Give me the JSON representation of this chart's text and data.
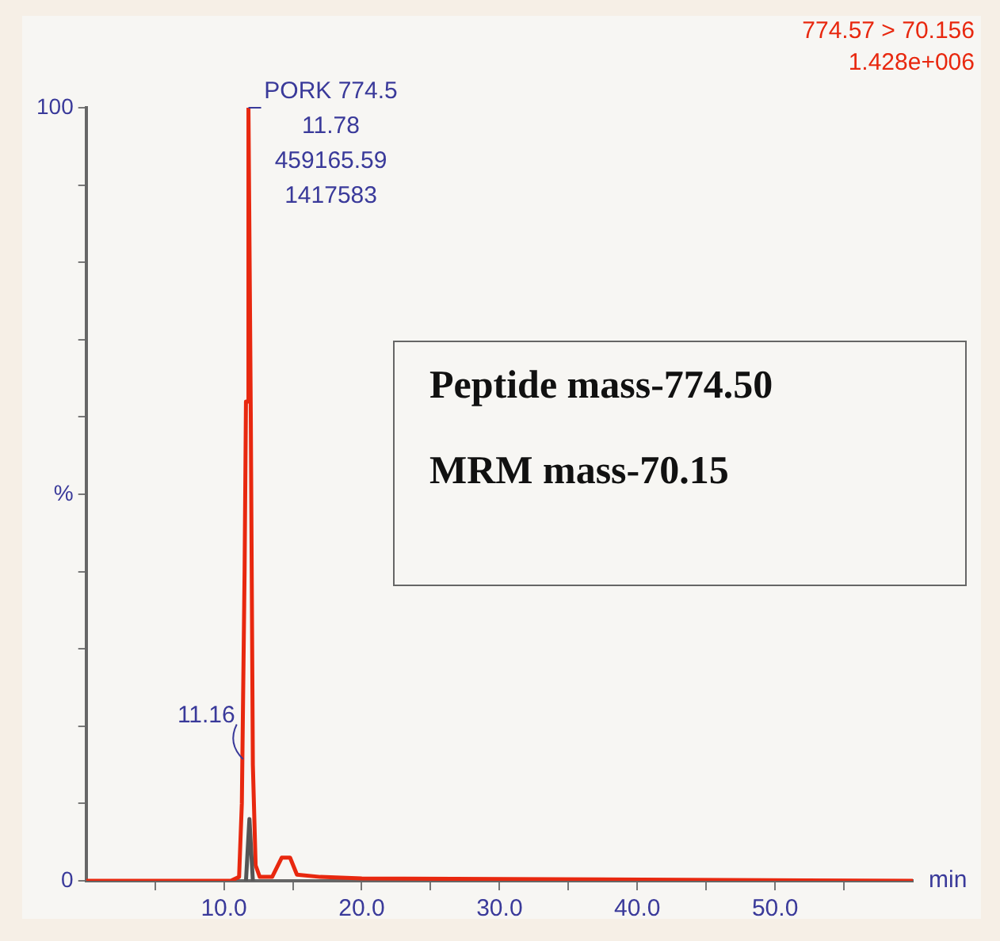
{
  "chart_data": {
    "type": "line",
    "title": "774.57 > 70.156",
    "subtitle": "1.428e+006",
    "xlabel": "min",
    "xlim": [
      0,
      60
    ],
    "xticks": [
      {
        "value": 5,
        "label": null
      },
      {
        "value": 10,
        "label": "10.0"
      },
      {
        "value": 15,
        "label": null
      },
      {
        "value": 20,
        "label": "20.0"
      },
      {
        "value": 25,
        "label": null
      },
      {
        "value": 30,
        "label": "30.0"
      },
      {
        "value": 35,
        "label": null
      },
      {
        "value": 40,
        "label": "40.0"
      },
      {
        "value": 45,
        "label": null
      },
      {
        "value": 50,
        "label": "50.0"
      },
      {
        "value": 55,
        "label": null
      }
    ],
    "ylim": [
      0,
      100
    ],
    "yticks": [
      0,
      {
        "value": 10,
        "label": null
      },
      {
        "value": 20,
        "label": null
      },
      {
        "value": 30,
        "label": null
      },
      {
        "value": 40,
        "label": null
      },
      {
        "value": 50,
        "label": "%"
      },
      {
        "value": 60,
        "label": null
      },
      {
        "value": 70,
        "label": null
      },
      {
        "value": 80,
        "label": null
      },
      {
        "value": 90,
        "label": null
      },
      100
    ],
    "grid": false,
    "legend": false,
    "marker": "none",
    "line_style": "solid",
    "series": [
      {
        "color": "#e8280f",
        "x": [
          0,
          10.5,
          11.1,
          11.3,
          11.5,
          11.6,
          11.7,
          11.78,
          11.95,
          12.1,
          12.3,
          12.6,
          13.5,
          14.2,
          14.8,
          15.3,
          17,
          20,
          60
        ],
        "values": [
          0,
          0,
          0.5,
          10,
          40,
          62,
          62,
          100,
          60,
          15,
          2,
          0.5,
          0.5,
          3,
          3,
          0.8,
          0.5,
          0.3,
          0
        ]
      },
      {
        "color": "#555555",
        "x": [
          11.6,
          11.85,
          12.1
        ],
        "values": [
          0,
          8,
          0
        ]
      }
    ],
    "annotations": [
      {
        "text": "PORK 774.5\n11.78\n459165.59\n1417583",
        "x": 11.78,
        "y": 100
      },
      {
        "text": "11.16",
        "x": 11.16,
        "y": 19
      },
      "Peptide mass-774.50",
      "MRM mass-70.15"
    ]
  }
}
